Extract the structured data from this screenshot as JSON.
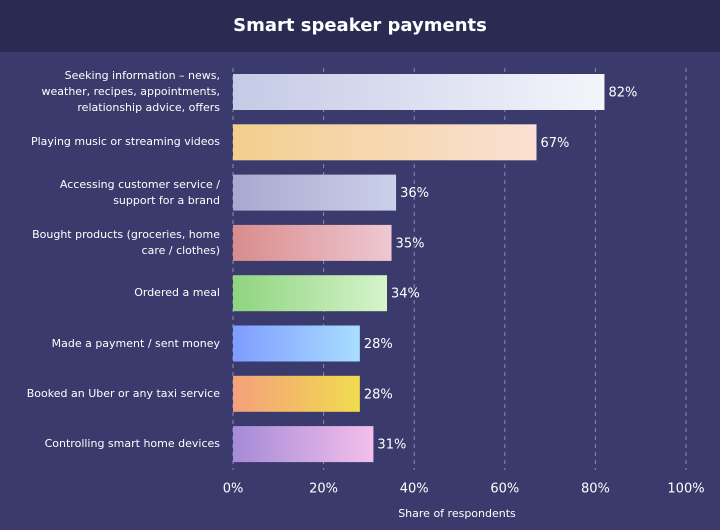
{
  "chart_data": {
    "type": "hbar",
    "title": "Smart speaker payments",
    "categories": [
      "Seeking information – news, weather, recipes, appointments, relationship advice, offers",
      "Playing music or streaming videos",
      "Accessing customer service / support for a brand",
      "Bought products (groceries, home care / clothes)",
      "Ordered a meal",
      "Made a payment / sent money",
      "Booked an Uber or any taxi service",
      "Controlling smart home devices"
    ],
    "values": [
      82,
      67,
      36,
      35,
      34,
      28,
      28,
      31
    ],
    "value_labels": [
      "82%",
      "67%",
      "36%",
      "35%",
      "34%",
      "28%",
      "28%",
      "31%"
    ],
    "colors": [
      [
        "#c5cae6",
        "#f4f5fb"
      ],
      [
        "#f2cf8e",
        "#fbe0d4"
      ],
      [
        "#a9a8cf",
        "#cbd0ea"
      ],
      [
        "#d98c8c",
        "#eec8d2"
      ],
      [
        "#8fd47f",
        "#d6f4ca"
      ],
      [
        "#7f9cff",
        "#a9deff"
      ],
      [
        "#f4a07c",
        "#f1dc4e"
      ],
      [
        "#a58ad8",
        "#f4bfea"
      ]
    ],
    "xlim": [
      0,
      100
    ],
    "xticks": [
      {
        "value": 0,
        "label": "0%"
      },
      {
        "value": 20,
        "label": "20%"
      },
      {
        "value": 40,
        "label": "40%"
      },
      {
        "value": 60,
        "label": "60%"
      },
      {
        "value": 80,
        "label": "80%"
      },
      {
        "value": 100,
        "label": "100%"
      }
    ],
    "xlabel": "Share of respondents",
    "grid": true
  }
}
